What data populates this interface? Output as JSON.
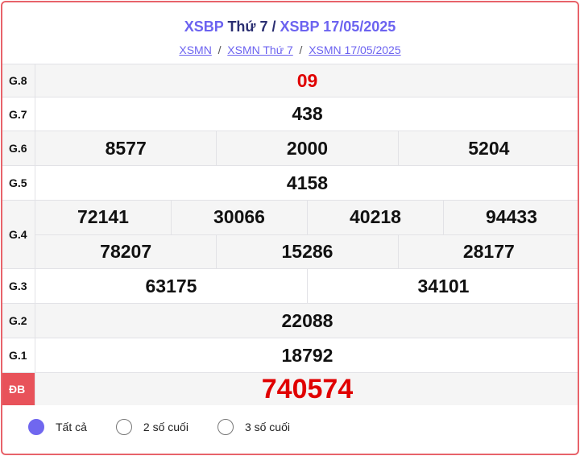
{
  "header": {
    "title_a": "XSBP",
    "title_mid": " Thứ 7 / ",
    "title_b": "XSBP 17/05/2025",
    "breadcrumbs": [
      "XSMN",
      "XSMN Thứ 7",
      "XSMN 17/05/2025"
    ],
    "separator": "/"
  },
  "prizes": [
    {
      "label": "G.8",
      "rows": [
        [
          "09"
        ]
      ]
    },
    {
      "label": "G.7",
      "rows": [
        [
          "438"
        ]
      ]
    },
    {
      "label": "G.6",
      "rows": [
        [
          "8577",
          "2000",
          "5204"
        ]
      ]
    },
    {
      "label": "G.5",
      "rows": [
        [
          "4158"
        ]
      ]
    },
    {
      "label": "G.4",
      "rows": [
        [
          "72141",
          "30066",
          "40218",
          "94433"
        ],
        [
          "78207",
          "15286",
          "28177"
        ]
      ]
    },
    {
      "label": "G.3",
      "rows": [
        [
          "63175",
          "34101"
        ]
      ]
    },
    {
      "label": "G.2",
      "rows": [
        [
          "22088"
        ]
      ]
    },
    {
      "label": "G.1",
      "rows": [
        [
          "18792"
        ]
      ]
    },
    {
      "label": "ĐB",
      "rows": [
        [
          "740574"
        ]
      ]
    }
  ],
  "filter": {
    "options": [
      "Tất cả",
      "2 số cuối",
      "3 số cuối"
    ],
    "selected": "Tất cả"
  },
  "colors": {
    "accent": "#6c63f0",
    "prize_red": "#e00000",
    "border": "#e8636a"
  }
}
